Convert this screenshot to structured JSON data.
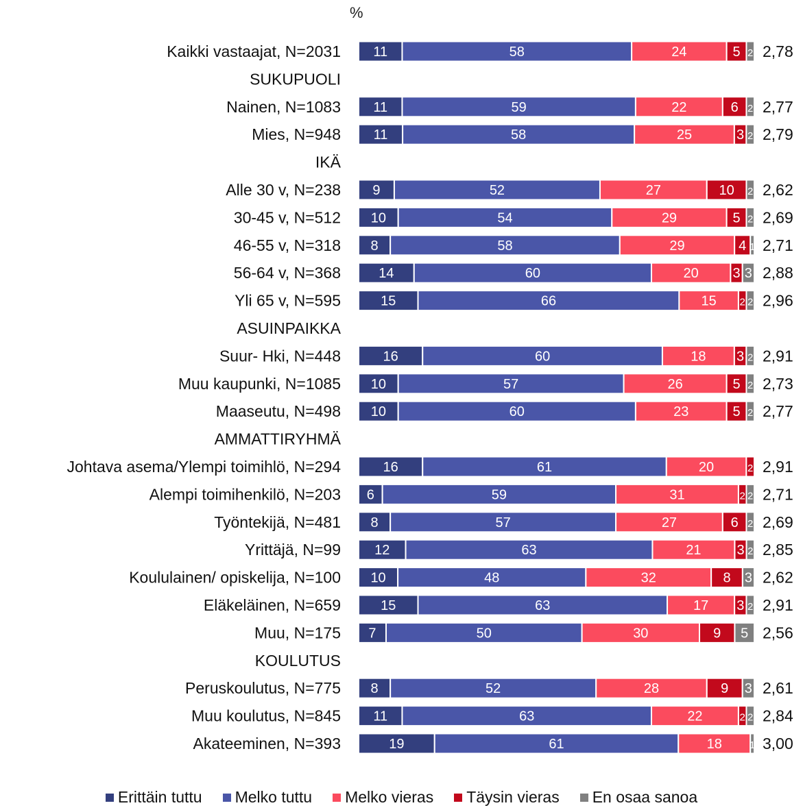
{
  "chart_data": {
    "type": "bar",
    "orientation": "horizontal",
    "stacked": true,
    "unit_label": "%",
    "xlim": [
      0,
      100
    ],
    "grid": false,
    "legend_position": "bottom",
    "series": [
      {
        "name": "Erittäin tuttu",
        "color": "#333f7e"
      },
      {
        "name": "Melko tuttu",
        "color": "#4a56a8"
      },
      {
        "name": "Melko vieras",
        "color": "#fb4b5e"
      },
      {
        "name": "Täysin vieras",
        "color": "#c2091c"
      },
      {
        "name": "En osaa sanoa",
        "color": "#808080"
      }
    ],
    "rows": [
      {
        "label": "Kaikki vastaajat, N=2031",
        "values": [
          11,
          58,
          24,
          5,
          2
        ],
        "mean": "2,78"
      },
      {
        "label": "SUKUPUOLI",
        "header": true
      },
      {
        "label": "Nainen, N=1083",
        "values": [
          11,
          59,
          22,
          6,
          2
        ],
        "mean": "2,77"
      },
      {
        "label": "Mies, N=948",
        "values": [
          11,
          58,
          25,
          3,
          2
        ],
        "mean": "2,79"
      },
      {
        "label": "IKÄ",
        "header": true
      },
      {
        "label": "Alle 30 v, N=238",
        "values": [
          9,
          52,
          27,
          10,
          2
        ],
        "mean": "2,62"
      },
      {
        "label": "30-45 v, N=512",
        "values": [
          10,
          54,
          29,
          5,
          2
        ],
        "mean": "2,69"
      },
      {
        "label": "46-55 v, N=318",
        "values": [
          8,
          58,
          29,
          4,
          1
        ],
        "mean": "2,71"
      },
      {
        "label": "56-64 v, N=368",
        "values": [
          14,
          60,
          20,
          3,
          3
        ],
        "mean": "2,88"
      },
      {
        "label": "Yli 65 v, N=595",
        "values": [
          15,
          66,
          15,
          2,
          2
        ],
        "mean": "2,96"
      },
      {
        "label": "ASUINPAIKKA",
        "header": true
      },
      {
        "label": "Suur- Hki, N=448",
        "values": [
          16,
          60,
          18,
          3,
          2
        ],
        "mean": "2,91"
      },
      {
        "label": "Muu kaupunki, N=1085",
        "values": [
          10,
          57,
          26,
          5,
          2
        ],
        "mean": "2,73"
      },
      {
        "label": "Maaseutu, N=498",
        "values": [
          10,
          60,
          23,
          5,
          2
        ],
        "mean": "2,77"
      },
      {
        "label": "AMMATTIRYHMÄ",
        "header": true
      },
      {
        "label": "Johtava asema/Ylempi toimihlö, N=294",
        "values": [
          16,
          61,
          20,
          2,
          0
        ],
        "mean": "2,91"
      },
      {
        "label": "Alempi toimihenkilö, N=203",
        "values": [
          6,
          59,
          31,
          2,
          2
        ],
        "mean": "2,71"
      },
      {
        "label": "Työntekijä, N=481",
        "values": [
          8,
          57,
          27,
          6,
          2
        ],
        "mean": "2,69"
      },
      {
        "label": "Yrittäjä, N=99",
        "values": [
          12,
          63,
          21,
          3,
          2
        ],
        "mean": "2,85"
      },
      {
        "label": "Koululainen/ opiskelija, N=100",
        "values": [
          10,
          48,
          32,
          8,
          3
        ],
        "mean": "2,62"
      },
      {
        "label": "Eläkeläinen, N=659",
        "values": [
          15,
          63,
          17,
          3,
          2
        ],
        "mean": "2,91"
      },
      {
        "label": "Muu, N=175",
        "values": [
          7,
          50,
          30,
          9,
          5
        ],
        "mean": "2,56"
      },
      {
        "label": "KOULUTUS",
        "header": true
      },
      {
        "label": "Peruskoulutus, N=775",
        "values": [
          8,
          52,
          28,
          9,
          3
        ],
        "mean": "2,61"
      },
      {
        "label": "Muu koulutus, N=845",
        "values": [
          11,
          63,
          22,
          2,
          2
        ],
        "mean": "2,84"
      },
      {
        "label": "Akateeminen, N=393",
        "values": [
          19,
          61,
          18,
          0,
          1
        ],
        "mean": "3,00"
      }
    ]
  }
}
